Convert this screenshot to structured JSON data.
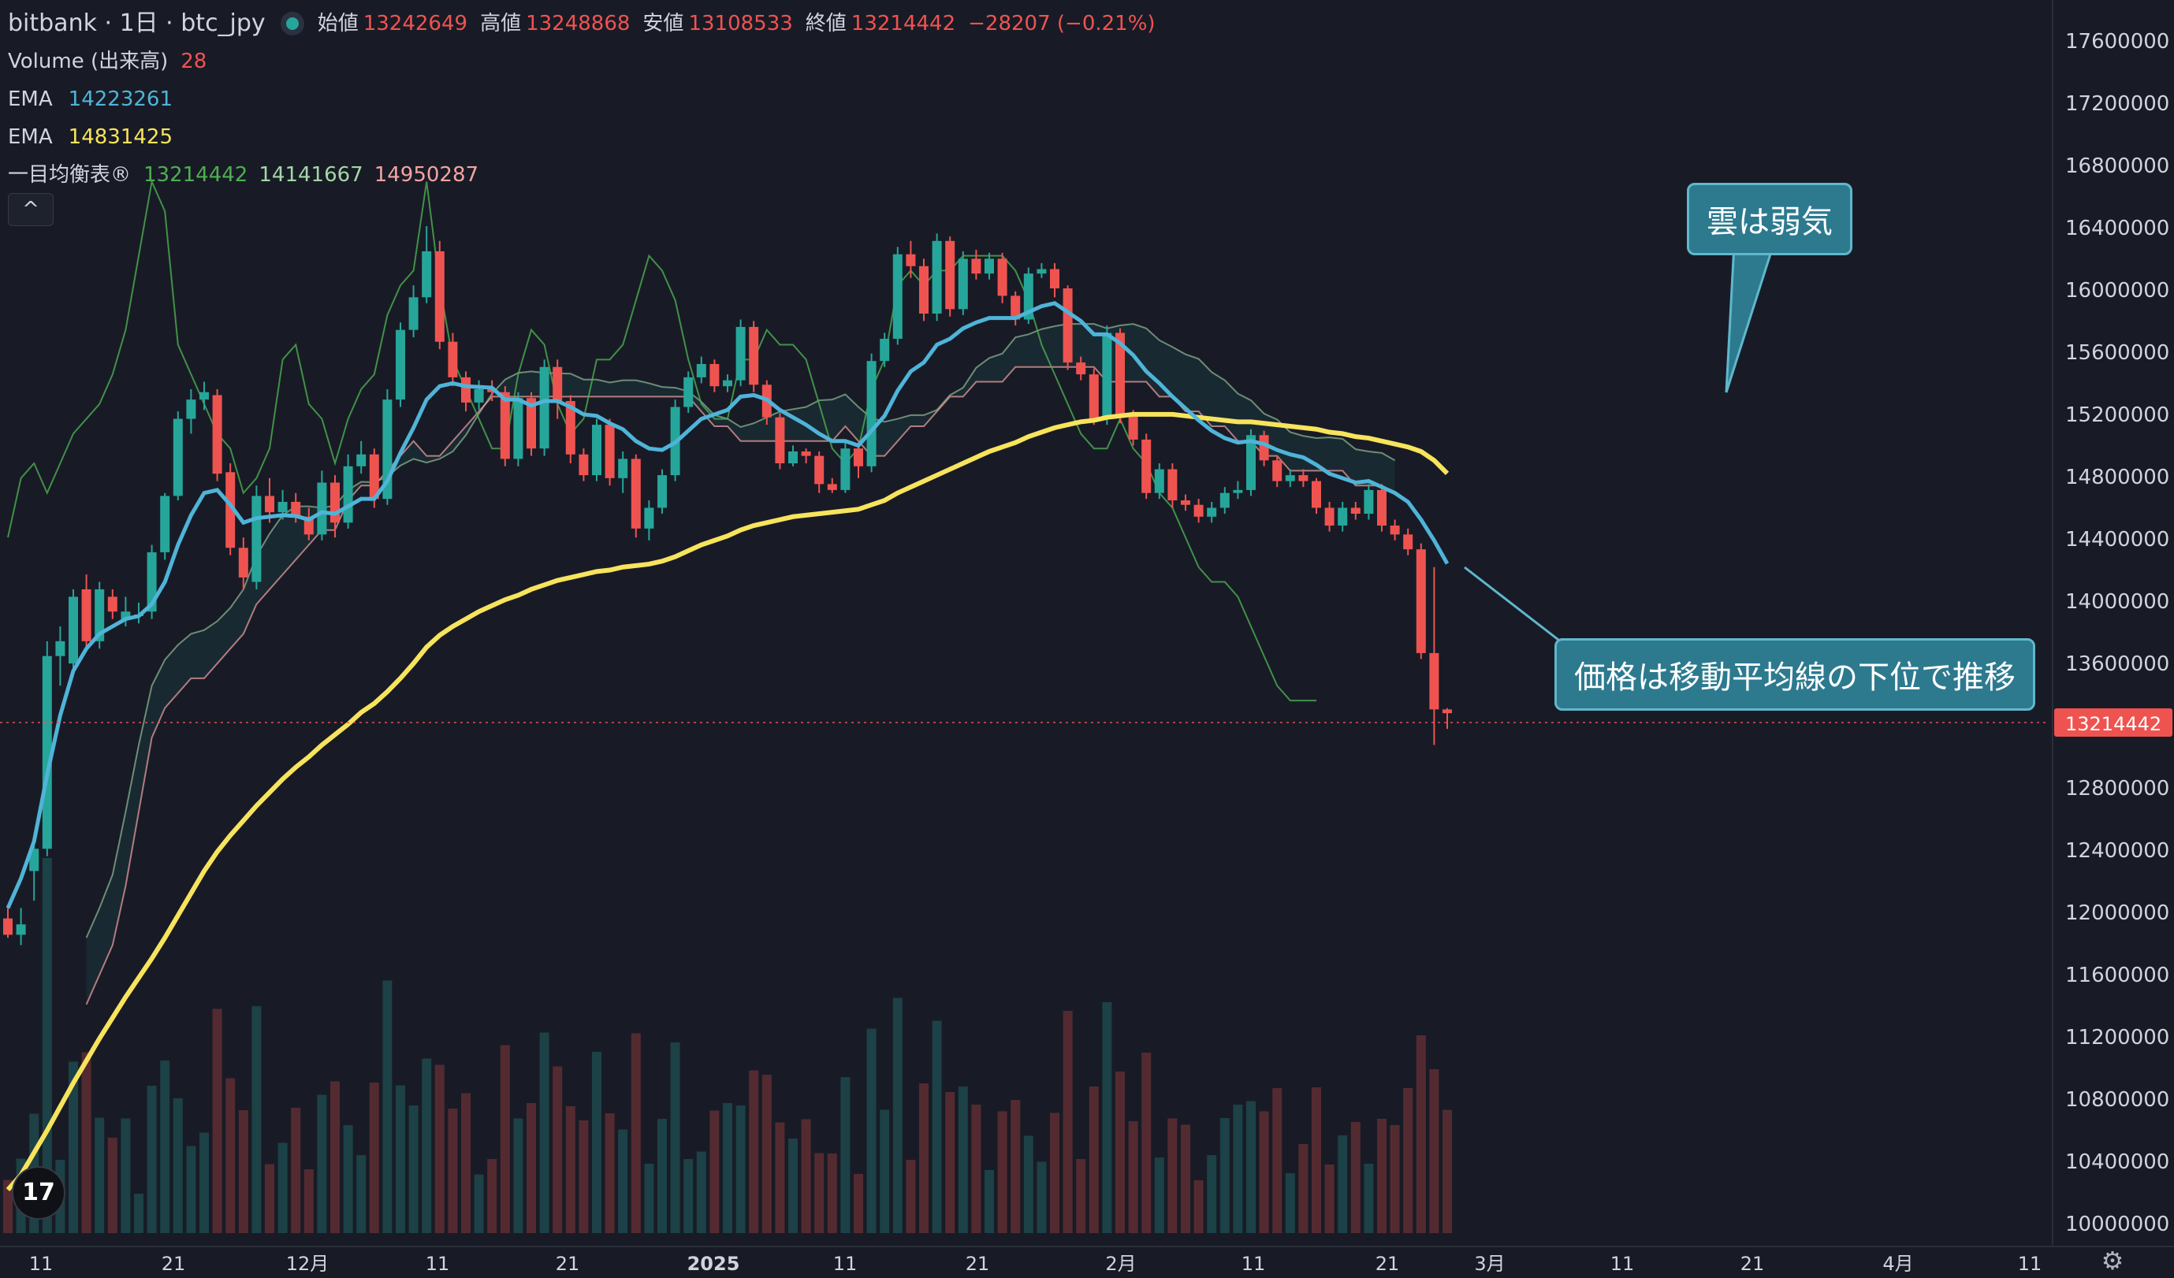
{
  "header": {
    "symbol_title": "bitbank · 1日 · btc_jpy",
    "ohlc": {
      "open_label": "始値",
      "open": "13242649",
      "high_label": "高値",
      "high": "13248868",
      "low_label": "安値",
      "low": "13108533",
      "close_label": "終値",
      "close": "13214442",
      "change": "−28207 (−0.21%)"
    }
  },
  "indicators": {
    "volume": {
      "label": "Volume (出来高)",
      "value": "28"
    },
    "ema1": {
      "label": "EMA",
      "value": "14223261",
      "color": "#4fb4d8"
    },
    "ema2": {
      "label": "EMA",
      "value": "14831425",
      "color": "#f8e45c"
    },
    "ichimoku": {
      "label": "一目均衡表®",
      "v1": "13214442",
      "v2": "14141667",
      "v3": "14950287"
    }
  },
  "collapse_button": "^",
  "annotations": {
    "cloud": "雲は弱気",
    "price": "価格は移動平均線の下位で推移"
  },
  "price_axis": {
    "ticks": [
      "17600000",
      "17200000",
      "16800000",
      "16400000",
      "16000000",
      "15600000",
      "15200000",
      "14800000",
      "14400000",
      "14000000",
      "13600000",
      "13200000",
      "12800000",
      "12400000",
      "12000000",
      "11600000",
      "11200000",
      "10800000",
      "10400000",
      "10000000"
    ],
    "current_price": "13214442"
  },
  "time_axis": {
    "ticks": [
      "11",
      "21",
      "12月",
      "11",
      "21",
      "2025",
      "11",
      "21",
      "2月",
      "11",
      "21",
      "3月",
      "11",
      "21",
      "4月",
      "11"
    ]
  },
  "logo_text": "17",
  "colors": {
    "up": "#26a69a",
    "down": "#ef5350",
    "background": "#181b26",
    "ema_fast": "#4fb4d8",
    "ema_slow": "#f8e45c",
    "conversion": "#4caf50",
    "lagging": "#a5d6a7",
    "span_b": "#f4a3a3",
    "callout": "#2d7a8f"
  },
  "chart_data": {
    "type": "candlestick",
    "start_date": "2024-11-01",
    "y_range": [
      10000000,
      17600000
    ],
    "grid": false,
    "candles": [
      [
        11830000,
        11720000,
        11900000,
        11700000
      ],
      [
        11720000,
        11790000,
        11900000,
        11650000
      ],
      [
        12150000,
        12300000,
        12320000,
        11950000
      ],
      [
        12300000,
        13600000,
        13700000,
        12250000
      ],
      [
        13600000,
        13700000,
        13800000,
        13400000
      ],
      [
        13550000,
        14000000,
        14050000,
        13500000
      ],
      [
        14050000,
        13700000,
        14150000,
        13650000
      ],
      [
        13700000,
        14050000,
        14100000,
        13650000
      ],
      [
        14000000,
        13900000,
        14050000,
        13850000
      ],
      [
        13850000,
        13900000,
        14000000,
        13800000
      ],
      [
        13880000,
        13880000,
        13960000,
        13820000
      ],
      [
        13900000,
        14300000,
        14350000,
        13850000
      ],
      [
        14300000,
        14680000,
        14700000,
        14250000
      ],
      [
        14680000,
        15200000,
        15250000,
        14650000
      ],
      [
        15200000,
        15330000,
        15400000,
        15100000
      ],
      [
        15330000,
        15380000,
        15450000,
        15260000
      ],
      [
        15360000,
        14830000,
        15400000,
        14780000
      ],
      [
        14840000,
        14330000,
        14900000,
        14280000
      ],
      [
        14330000,
        14130000,
        14400000,
        14050000
      ],
      [
        14100000,
        14680000,
        14750000,
        14050000
      ],
      [
        14680000,
        14570000,
        14800000,
        14500000
      ],
      [
        14570000,
        14640000,
        14720000,
        14520000
      ],
      [
        14640000,
        14540000,
        14700000,
        14500000
      ],
      [
        14540000,
        14420000,
        14600000,
        14380000
      ],
      [
        14420000,
        14770000,
        14850000,
        14380000
      ],
      [
        14770000,
        14500000,
        14820000,
        14400000
      ],
      [
        14500000,
        14880000,
        14960000,
        14460000
      ],
      [
        14880000,
        14960000,
        15050000,
        14830000
      ],
      [
        14960000,
        14660000,
        15000000,
        14600000
      ],
      [
        14660000,
        15330000,
        15400000,
        14620000
      ],
      [
        15330000,
        15800000,
        15850000,
        15280000
      ],
      [
        15800000,
        16020000,
        16100000,
        15750000
      ],
      [
        16020000,
        16330000,
        16500000,
        15980000
      ],
      [
        16330000,
        15720000,
        16400000,
        15670000
      ],
      [
        15720000,
        15480000,
        15780000,
        15420000
      ],
      [
        15480000,
        15310000,
        15520000,
        15250000
      ],
      [
        15310000,
        15400000,
        15460000,
        15260000
      ],
      [
        15400000,
        15380000,
        15460000,
        15320000
      ],
      [
        15380000,
        14930000,
        15420000,
        14880000
      ],
      [
        14930000,
        15340000,
        15380000,
        14880000
      ],
      [
        15340000,
        15000000,
        15380000,
        14950000
      ],
      [
        15000000,
        15550000,
        15600000,
        14950000
      ],
      [
        15550000,
        15320000,
        15600000,
        15200000
      ],
      [
        15320000,
        14960000,
        15360000,
        14900000
      ],
      [
        14960000,
        14820000,
        15000000,
        14780000
      ],
      [
        14820000,
        15160000,
        15200000,
        14780000
      ],
      [
        15160000,
        14800000,
        15200000,
        14750000
      ],
      [
        14800000,
        14930000,
        14980000,
        14700000
      ],
      [
        14930000,
        14460000,
        14960000,
        14400000
      ],
      [
        14460000,
        14600000,
        14650000,
        14380000
      ],
      [
        14600000,
        14820000,
        14860000,
        14560000
      ],
      [
        14820000,
        15280000,
        15330000,
        14780000
      ],
      [
        15280000,
        15480000,
        15520000,
        15240000
      ],
      [
        15480000,
        15570000,
        15620000,
        15440000
      ],
      [
        15570000,
        15420000,
        15600000,
        15380000
      ],
      [
        15420000,
        15460000,
        15500000,
        15380000
      ],
      [
        15460000,
        15820000,
        15870000,
        15420000
      ],
      [
        15820000,
        15430000,
        15860000,
        15380000
      ],
      [
        15430000,
        15210000,
        15460000,
        15160000
      ],
      [
        15210000,
        14900000,
        15240000,
        14860000
      ],
      [
        14900000,
        14980000,
        15020000,
        14880000
      ],
      [
        14980000,
        14950000,
        15000000,
        14900000
      ],
      [
        14950000,
        14760000,
        14980000,
        14700000
      ],
      [
        14760000,
        14720000,
        14800000,
        14700000
      ],
      [
        14720000,
        15000000,
        15050000,
        14700000
      ],
      [
        15000000,
        14880000,
        15040000,
        14800000
      ],
      [
        14880000,
        15590000,
        15640000,
        14840000
      ],
      [
        15590000,
        15740000,
        15780000,
        15550000
      ],
      [
        15740000,
        16310000,
        16360000,
        15700000
      ],
      [
        16310000,
        16230000,
        16400000,
        16150000
      ],
      [
        16230000,
        15910000,
        16280000,
        15860000
      ],
      [
        15910000,
        16400000,
        16450000,
        15860000
      ],
      [
        16400000,
        15940000,
        16430000,
        15890000
      ],
      [
        15940000,
        16280000,
        16330000,
        15900000
      ],
      [
        16280000,
        16180000,
        16340000,
        16140000
      ],
      [
        16180000,
        16280000,
        16320000,
        16140000
      ],
      [
        16280000,
        16030000,
        16320000,
        15980000
      ],
      [
        16030000,
        15870000,
        16060000,
        15830000
      ],
      [
        15870000,
        16180000,
        16220000,
        15840000
      ],
      [
        16180000,
        16210000,
        16250000,
        16150000
      ],
      [
        16210000,
        16080000,
        16250000,
        16020000
      ],
      [
        16080000,
        15580000,
        16100000,
        15530000
      ],
      [
        15580000,
        15500000,
        15620000,
        15460000
      ],
      [
        15500000,
        15200000,
        15540000,
        15160000
      ],
      [
        15200000,
        15780000,
        15830000,
        15160000
      ],
      [
        15780000,
        15220000,
        15810000,
        15170000
      ],
      [
        15220000,
        15060000,
        15260000,
        15020000
      ],
      [
        15060000,
        14700000,
        15100000,
        14660000
      ],
      [
        14700000,
        14860000,
        14900000,
        14660000
      ],
      [
        14860000,
        14650000,
        14900000,
        14600000
      ],
      [
        14650000,
        14620000,
        14690000,
        14580000
      ],
      [
        14620000,
        14540000,
        14660000,
        14500000
      ],
      [
        14540000,
        14600000,
        14640000,
        14500000
      ],
      [
        14600000,
        14700000,
        14740000,
        14560000
      ],
      [
        14700000,
        14720000,
        14780000,
        14660000
      ],
      [
        14720000,
        15090000,
        15130000,
        14680000
      ],
      [
        15090000,
        14920000,
        15120000,
        14880000
      ],
      [
        14920000,
        14780000,
        14950000,
        14740000
      ],
      [
        14780000,
        14820000,
        14860000,
        14740000
      ],
      [
        14820000,
        14780000,
        14860000,
        14740000
      ],
      [
        14780000,
        14600000,
        14800000,
        14560000
      ],
      [
        14600000,
        14480000,
        14640000,
        14440000
      ],
      [
        14480000,
        14600000,
        14640000,
        14440000
      ],
      [
        14600000,
        14560000,
        14640000,
        14520000
      ],
      [
        14560000,
        14720000,
        14760000,
        14520000
      ],
      [
        14720000,
        14480000,
        14760000,
        14440000
      ],
      [
        14480000,
        14420000,
        14520000,
        14380000
      ],
      [
        14420000,
        14320000,
        14460000,
        14280000
      ],
      [
        14320000,
        13620000,
        14360000,
        13580000
      ],
      [
        13620000,
        13240000,
        14200000,
        13000000
      ],
      [
        13240000,
        13214442,
        13248868,
        13108533
      ]
    ],
    "ema_fast": [
      11900000,
      12100000,
      12350000,
      12800000,
      13200000,
      13500000,
      13650000,
      13750000,
      13800000,
      13850000,
      13870000,
      13950000,
      14100000,
      14350000,
      14550000,
      14700000,
      14720000,
      14620000,
      14500000,
      14530000,
      14540000,
      14550000,
      14545000,
      14520000,
      14570000,
      14560000,
      14610000,
      14660000,
      14660000,
      14780000,
      14970000,
      15140000,
      15330000,
      15420000,
      15440000,
      15420000,
      15415000,
      15410000,
      15330000,
      15330000,
      15290000,
      15320000,
      15320000,
      15280000,
      15230000,
      15220000,
      15170000,
      15130000,
      15050000,
      15000000,
      14990000,
      15040000,
      15120000,
      15200000,
      15230000,
      15260000,
      15350000,
      15360000,
      15330000,
      15260000,
      15210000,
      15160000,
      15100000,
      15050000,
      15050000,
      15020000,
      15120000,
      15220000,
      15390000,
      15520000,
      15580000,
      15700000,
      15740000,
      15810000,
      15850000,
      15880000,
      15880000,
      15880000,
      15920000,
      15960000,
      15980000,
      15920000,
      15860000,
      15770000,
      15770000,
      15710000,
      15630000,
      15520000,
      15440000,
      15350000,
      15270000,
      15190000,
      15120000,
      15070000,
      15040000,
      15050000,
      15030000,
      14990000,
      14960000,
      14940000,
      14890000,
      14830000,
      14800000,
      14770000,
      14780000,
      14740000,
      14700000,
      14640000,
      14520000,
      14380000,
      14223261
    ],
    "ema_slow": [
      10000000,
      10100000,
      10250000,
      10400000,
      10560000,
      10720000,
      10870000,
      11020000,
      11160000,
      11300000,
      11430000,
      11560000,
      11700000,
      11850000,
      12000000,
      12150000,
      12280000,
      12390000,
      12490000,
      12590000,
      12680000,
      12770000,
      12850000,
      12920000,
      13000000,
      13070000,
      13140000,
      13220000,
      13280000,
      13360000,
      13450000,
      13550000,
      13660000,
      13740000,
      13800000,
      13850000,
      13900000,
      13940000,
      13980000,
      14010000,
      14050000,
      14080000,
      14110000,
      14130000,
      14150000,
      14170000,
      14180000,
      14200000,
      14210000,
      14220000,
      14240000,
      14270000,
      14310000,
      14350000,
      14380000,
      14410000,
      14450000,
      14480000,
      14500000,
      14520000,
      14540000,
      14550000,
      14560000,
      14570000,
      14580000,
      14590000,
      14620000,
      14650000,
      14700000,
      14740000,
      14780000,
      14820000,
      14860000,
      14900000,
      14940000,
      14980000,
      15010000,
      15040000,
      15080000,
      15110000,
      15140000,
      15160000,
      15180000,
      15190000,
      15210000,
      15220000,
      15230000,
      15230000,
      15230000,
      15230000,
      15220000,
      15210000,
      15200000,
      15190000,
      15180000,
      15180000,
      15170000,
      15160000,
      15150000,
      15140000,
      15130000,
      15110000,
      15100000,
      15080000,
      15070000,
      15050000,
      15030000,
      15010000,
      14980000,
      14920000,
      14831425
    ],
    "tenkan": [
      14400000,
      14800000,
      14900000,
      14700000,
      14900000,
      15100000,
      15200000,
      15300000,
      15500000,
      15800000,
      16300000,
      16800000,
      16600000,
      15700000,
      15500000,
      15300000,
      15100000,
      15000000,
      14700000,
      14800000,
      15000000,
      15600000,
      15700000,
      15300000,
      15200000,
      14900000,
      15200000,
      15400000,
      15500000,
      15900000,
      16100000,
      16200000,
      16800000,
      16100000,
      15600000,
      15400000,
      15200000,
      15000000,
      15000000,
      15500000,
      15800000,
      15700000,
      15300000,
      15100000,
      15200000,
      15600000,
      15600000,
      15700000,
      16000000,
      16300000,
      16200000,
      16000000,
      15600000,
      15300000,
      15200000,
      15200000,
      15600000,
      15600000,
      15800000,
      15700000,
      15700000,
      15600000,
      15300000,
      15000000,
      14900000,
      15000000,
      15400000,
      15600000,
      16100000,
      16200000,
      16100000,
      16200000,
      16200000,
      16300000,
      16300000,
      16300000,
      16300000,
      16200000,
      16000000,
      15700000,
      15500000,
      15300000,
      15100000,
      15000000,
      15000000,
      15200000,
      15000000,
      14900000,
      14700000,
      14600000,
      14400000,
      14200000,
      14100000,
      14100000,
      14000000,
      13800000,
      13600000,
      13400000,
      13300000,
      13300000,
      13300000
    ],
    "kijun": [
      11500000,
      11700000,
      11900000,
      12300000,
      12800000,
      13300000,
      13500000,
      13600000,
      13700000,
      13700000,
      13800000,
      13900000,
      14000000,
      14200000,
      14300000,
      14400000,
      14500000,
      14600000,
      14700000,
      14700000,
      14900000,
      15000000,
      15000000,
      15100000,
      15200000,
      15300000,
      15200000,
      15200000,
      15300000,
      15400000,
      15500000,
      15600000,
      15600000,
      15600000,
      15600000,
      15600000,
      15600000,
      15600000,
      15600000,
      15600000,
      15600000,
      15600000,
      15600000,
      15600000,
      15600000,
      15600000,
      15600000,
      15500000,
      15400000,
      15400000,
      15300000,
      15300000,
      15300000,
      15300000,
      15300000,
      15300000,
      15300000,
      15300000,
      15400000,
      15300000,
      15200000,
      15200000,
      15300000,
      15400000,
      15400000,
      15500000,
      15600000,
      15600000,
      15700000,
      15700000,
      15700000,
      15800000,
      15800000,
      15800000,
      15800000,
      15800000,
      15800000,
      15800000,
      15700000,
      15700000,
      15700000,
      15700000,
      15600000,
      15600000,
      15500000,
      15500000,
      15400000,
      15400000,
      15300000,
      15300000,
      15200000,
      15200000,
      15100000,
      15100000,
      15100000,
      15100000,
      15100000,
      15000000,
      15000000,
      15000000,
      14950287
    ]
  }
}
